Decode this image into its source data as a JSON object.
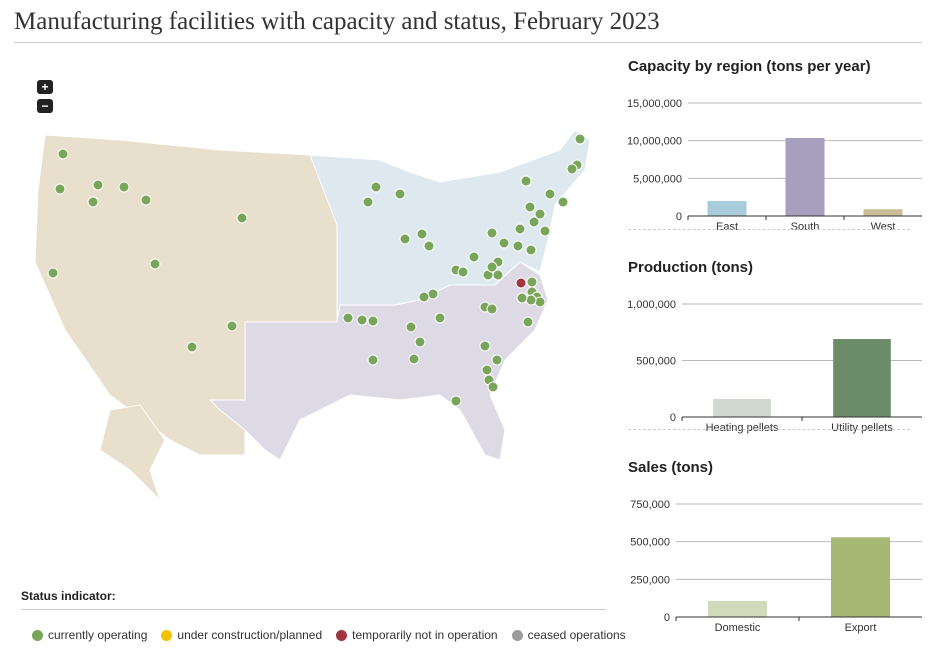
{
  "title": "Manufacturing facilities with capacity and status, February 2023",
  "map": {
    "zoom_in_label": "+",
    "zoom_out_label": "−",
    "region_colors": {
      "West": "#e8dfcc",
      "East": "#dde9ef",
      "South": "#dddae6"
    },
    "status_colors": {
      "currently operating": "#79a55a",
      "under construction/planned": "#f2c200",
      "temporarily not in operation": "#a1343f",
      "ceased operations": "#9c9c9c"
    }
  },
  "status": {
    "title": "Status indicator:",
    "items": [
      {
        "label": "currently operating",
        "color": "#79a55a"
      },
      {
        "label": "under construction/planned",
        "color": "#f2c200"
      },
      {
        "label": "temporarily not in operation",
        "color": "#a1343f"
      },
      {
        "label": "ceased operations",
        "color": "#9c9c9c"
      }
    ]
  },
  "chart_data": [
    {
      "type": "bar",
      "title": "Capacity by region (tons per year)",
      "categories": [
        "East",
        "South",
        "West"
      ],
      "values": [
        2000000,
        10350000,
        900000
      ],
      "colors": [
        "#a8ccd9",
        "#a89ebd",
        "#cbbd98"
      ],
      "ylim": [
        0,
        15000000
      ],
      "ticks": [
        "0",
        "5,000,000",
        "10,000,000",
        "15,000,000"
      ],
      "tick_values": [
        0,
        5000000,
        10000000,
        15000000
      ],
      "grid": true
    },
    {
      "type": "bar",
      "title": "Production (tons)",
      "categories": [
        "Heating pellets",
        "Utility pellets"
      ],
      "values": [
        160000,
        690000
      ],
      "colors": [
        "#d0d9cf",
        "#6b8c69"
      ],
      "ylim": [
        0,
        1000000
      ],
      "ticks": [
        "0",
        "500,000",
        "1,000,000"
      ],
      "tick_values": [
        0,
        500000,
        1000000
      ],
      "grid": true
    },
    {
      "type": "bar",
      "title": "Sales (tons)",
      "categories": [
        "Domestic",
        "Export"
      ],
      "values": [
        107000,
        529000
      ],
      "colors": [
        "#d1dbbb",
        "#a7b874"
      ],
      "ylim": [
        0,
        750000
      ],
      "ticks": [
        "0",
        "250,000",
        "500,000",
        "750,000"
      ],
      "tick_values": [
        0,
        250000,
        500000,
        750000
      ],
      "grid": true
    }
  ]
}
